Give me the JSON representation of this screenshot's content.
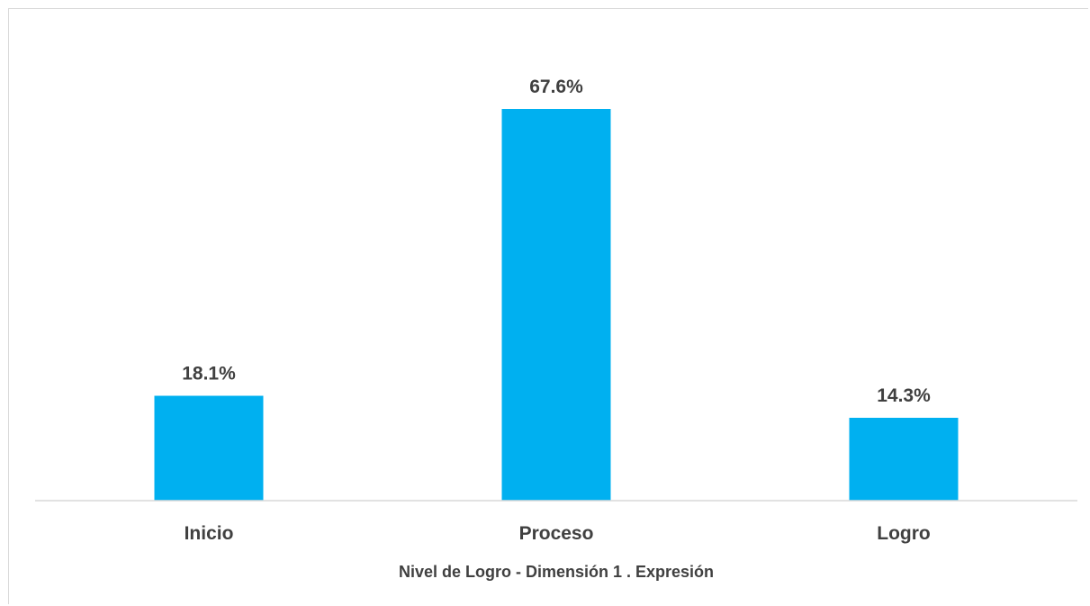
{
  "chart_data": {
    "type": "bar",
    "categories": [
      "Inicio",
      "Proceso",
      "Logro"
    ],
    "values": [
      18.1,
      67.6,
      14.3
    ],
    "data_labels": [
      "18.1%",
      "67.6%",
      "14.3%"
    ],
    "unit": "%",
    "title": "",
    "xlabel": "Nivel de Logro - Dimensión 1 . Expresión",
    "ylabel": "",
    "ylim": [
      0,
      67.6
    ],
    "grid": false,
    "legend": "none",
    "bar_color": "#00B0F0",
    "text_color": "#404040",
    "axis_color": "#d9d9d9"
  }
}
